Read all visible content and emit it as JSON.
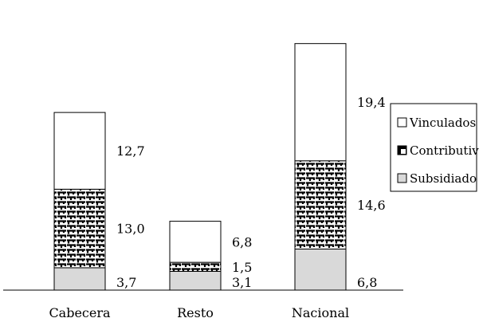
{
  "chart_data": {
    "type": "bar",
    "stacked": true,
    "categories": [
      "Cabecera",
      "Resto",
      "Nacional"
    ],
    "series": [
      {
        "name": "Subsidiado",
        "values": [
          3.7,
          3.1,
          6.8
        ],
        "labels": [
          "3,7",
          "3,1",
          "6,8"
        ],
        "fill": "#d9d9d9"
      },
      {
        "name": "Contributivo",
        "values": [
          13.0,
          1.5,
          14.6
        ],
        "labels": [
          "13,0",
          "1,5",
          "14,6"
        ],
        "fill": "pattern-bricks"
      },
      {
        "name": "Vinculados",
        "values": [
          12.7,
          6.8,
          19.4
        ],
        "labels": [
          "12,7",
          "6,8",
          "19,4"
        ],
        "fill": "#ffffff"
      }
    ],
    "legend_order": [
      "Vinculados",
      "Contributivo",
      "Subsidiado"
    ],
    "legend_position": "right",
    "grid": false,
    "ylim": [
      0,
      43
    ]
  }
}
